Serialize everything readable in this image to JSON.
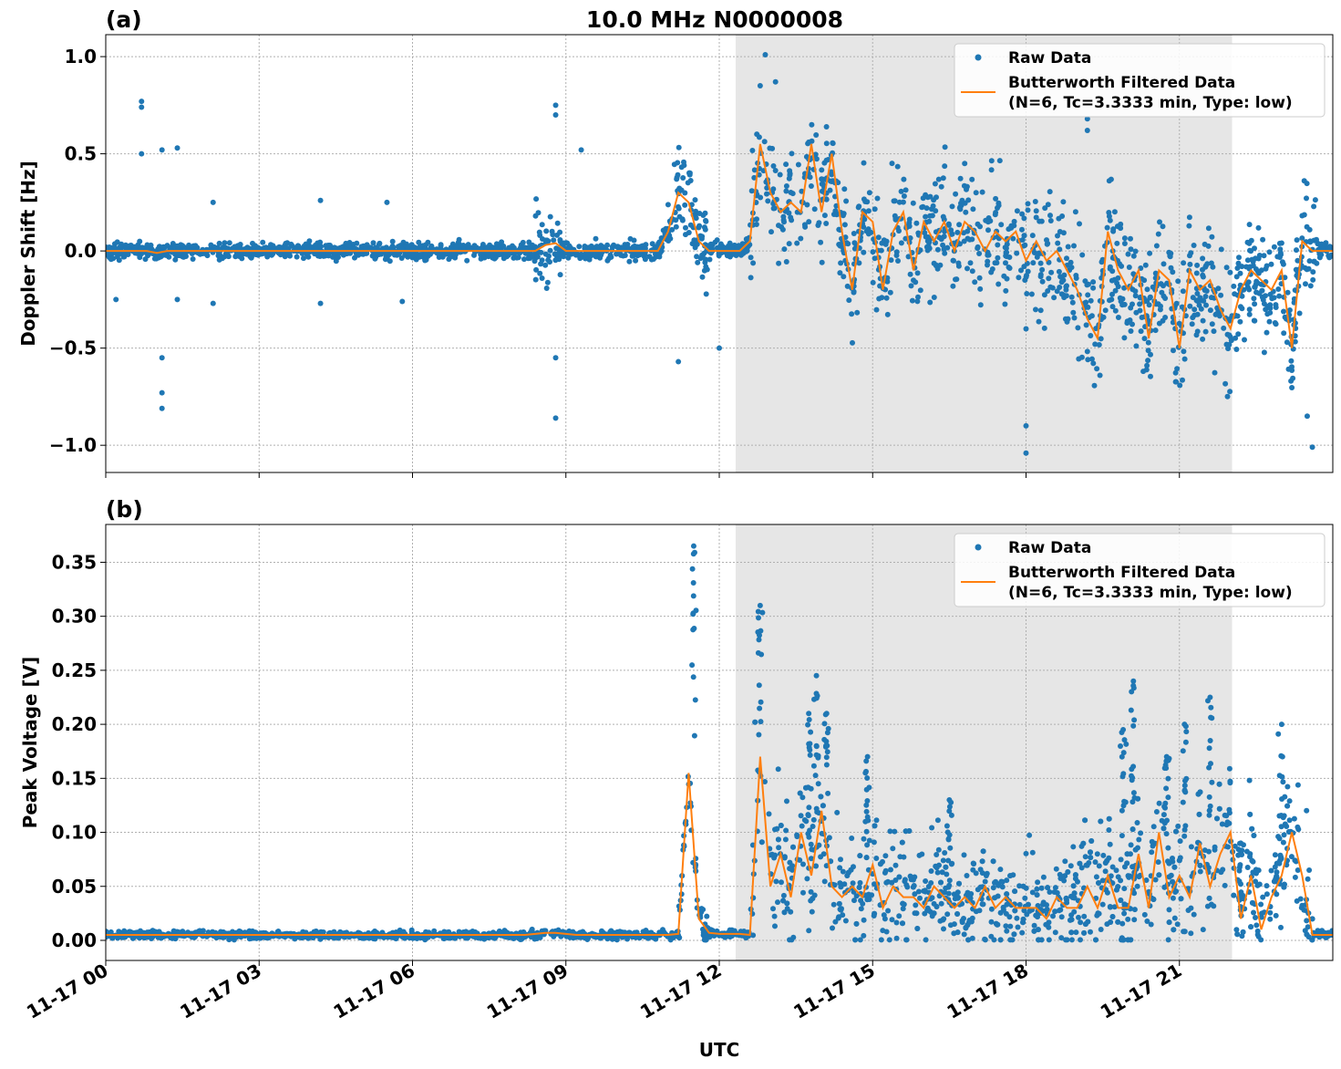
{
  "chart_data": [
    {
      "type": "scatter+line",
      "panel_label": "(a)",
      "title": "10.0 MHz N0000008",
      "xlabel": "UTC",
      "ylabel": "Doppler Shift [Hz]",
      "xlim_hours": [
        0,
        24
      ],
      "ylim": [
        -1.14,
        1.113
      ],
      "yticks": [
        1.0,
        0.5,
        0.0,
        -0.5,
        -1.0
      ],
      "ytick_labels": [
        "1.0",
        "0.5",
        "0.0",
        "−0.5",
        "−1.0"
      ],
      "grid": true,
      "shaded_region_hours": [
        12.32,
        22.03
      ],
      "legend": {
        "position": "top-right",
        "entries": [
          "Raw Data",
          "Butterworth Filtered Data",
          "(N=6, Tc=3.3333 min, Type: low)"
        ]
      },
      "filtered_step_hours": 0.2,
      "filtered": [
        0,
        0,
        0,
        0,
        0,
        -0.01,
        0,
        0,
        0,
        0,
        0,
        0,
        0,
        0,
        0,
        0,
        0,
        0,
        0,
        0,
        0,
        0,
        0,
        0,
        0,
        0,
        0,
        0,
        0,
        0,
        0,
        0,
        0,
        0,
        0,
        0,
        0,
        0,
        0,
        0,
        0,
        0,
        0,
        0.03,
        0.04,
        0,
        0,
        0,
        0,
        0,
        0,
        0,
        0,
        0,
        0,
        0.1,
        0.3,
        0.25,
        0.05,
        0,
        0,
        0,
        0,
        0.05,
        0.55,
        0.3,
        0.2,
        0.25,
        0.2,
        0.55,
        0.2,
        0.5,
        0.1,
        -0.2,
        0.2,
        0.15,
        -0.2,
        0.1,
        0.2,
        -0.1,
        0.15,
        0.05,
        0.15,
        0,
        0.15,
        0.1,
        0,
        0.1,
        0.05,
        0.1,
        -0.05,
        0.05,
        -0.05,
        0,
        -0.1,
        -0.2,
        -0.35,
        -0.45,
        0.1,
        -0.1,
        -0.2,
        -0.1,
        -0.45,
        -0.1,
        -0.15,
        -0.5,
        -0.1,
        -0.2,
        -0.15,
        -0.3,
        -0.4,
        -0.2,
        -0.1,
        -0.15,
        -0.2,
        -0.1,
        -0.5,
        0.05,
        0,
        0,
        0
      ],
      "raw_spread_hz": [
        [
          0,
          0.04
        ],
        [
          8.4,
          0.2
        ],
        [
          8.9,
          0.05
        ],
        [
          11.0,
          0.2
        ],
        [
          11.8,
          0.04
        ],
        [
          12.6,
          0.28
        ],
        [
          18.0,
          0.33
        ],
        [
          22.0,
          0.28
        ],
        [
          23.7,
          0.05
        ]
      ],
      "raw_outliers": [
        [
          0.2,
          -0.25
        ],
        [
          0.7,
          0.77
        ],
        [
          0.7,
          0.74
        ],
        [
          0.7,
          0.5
        ],
        [
          1.1,
          -0.81
        ],
        [
          1.1,
          -0.73
        ],
        [
          1.1,
          -0.55
        ],
        [
          1.1,
          0.52
        ],
        [
          1.4,
          0.53
        ],
        [
          1.4,
          -0.25
        ],
        [
          2.1,
          0.25
        ],
        [
          2.1,
          -0.27
        ],
        [
          4.2,
          0.26
        ],
        [
          4.2,
          -0.27
        ],
        [
          5.5,
          0.25
        ],
        [
          5.8,
          -0.26
        ],
        [
          8.8,
          0.75
        ],
        [
          8.8,
          0.7
        ],
        [
          8.8,
          -0.86
        ],
        [
          8.8,
          -0.55
        ],
        [
          9.3,
          0.52
        ],
        [
          11.2,
          -0.57
        ],
        [
          12.0,
          -0.5
        ],
        [
          12.9,
          1.01
        ],
        [
          12.8,
          0.85
        ],
        [
          13.1,
          0.87
        ],
        [
          16.8,
          0.45
        ],
        [
          18.0,
          -1.04
        ],
        [
          18.0,
          -0.9
        ],
        [
          19.2,
          0.62
        ],
        [
          19.2,
          0.68
        ],
        [
          23.6,
          -1.01
        ],
        [
          23.5,
          -0.85
        ]
      ]
    },
    {
      "type": "scatter+line",
      "panel_label": "(b)",
      "xlabel": "UTC",
      "ylabel": "Peak Voltage [V]",
      "xlim_hours": [
        0,
        24
      ],
      "ylim": [
        -0.0186,
        0.385
      ],
      "yticks": [
        0.35,
        0.3,
        0.25,
        0.2,
        0.15,
        0.1,
        0.05,
        0.0
      ],
      "ytick_labels": [
        "0.35",
        "0.30",
        "0.25",
        "0.20",
        "0.15",
        "0.10",
        "0.05",
        "0.00"
      ],
      "grid": true,
      "shaded_region_hours": [
        12.32,
        22.03
      ],
      "legend": {
        "position": "top-right",
        "entries": [
          "Raw Data",
          "Butterworth Filtered Data",
          "(N=6, Tc=3.3333 min, Type: low)"
        ]
      },
      "filtered_step_hours": 0.2,
      "filtered": [
        0.005,
        0.005,
        0.005,
        0.005,
        0.005,
        0.005,
        0.005,
        0.005,
        0.005,
        0.005,
        0.005,
        0.005,
        0.005,
        0.005,
        0.005,
        0.005,
        0.005,
        0.005,
        0.005,
        0.005,
        0.005,
        0.005,
        0.005,
        0.005,
        0.005,
        0.005,
        0.005,
        0.005,
        0.005,
        0.005,
        0.005,
        0.005,
        0.005,
        0.005,
        0.005,
        0.005,
        0.005,
        0.005,
        0.005,
        0.005,
        0.005,
        0.005,
        0.006,
        0.007,
        0.007,
        0.006,
        0.005,
        0.005,
        0.005,
        0.005,
        0.005,
        0.005,
        0.005,
        0.005,
        0.005,
        0.005,
        0.006,
        0.155,
        0.02,
        0.007,
        0.006,
        0.006,
        0.006,
        0.005,
        0.17,
        0.05,
        0.08,
        0.04,
        0.1,
        0.06,
        0.12,
        0.05,
        0.04,
        0.05,
        0.04,
        0.07,
        0.03,
        0.05,
        0.04,
        0.04,
        0.03,
        0.05,
        0.04,
        0.03,
        0.04,
        0.03,
        0.05,
        0.03,
        0.04,
        0.03,
        0.03,
        0.03,
        0.02,
        0.04,
        0.03,
        0.03,
        0.05,
        0.03,
        0.06,
        0.03,
        0.03,
        0.08,
        0.03,
        0.1,
        0.04,
        0.06,
        0.04,
        0.09,
        0.05,
        0.08,
        0.1,
        0.02,
        0.06,
        0.01,
        0.04,
        0.06,
        0.1,
        0.06,
        0.005,
        0.005,
        0.005
      ],
      "raw_spread_v": [
        [
          0,
          0.002
        ],
        [
          11.2,
          0.01
        ],
        [
          11.8,
          0.002
        ],
        [
          12.6,
          0.03
        ],
        [
          16.0,
          0.022
        ],
        [
          19.0,
          0.03
        ],
        [
          23.6,
          0.002
        ]
      ],
      "raw_spikes": [
        [
          11.5,
          0.365
        ],
        [
          12.8,
          0.31
        ],
        [
          13.75,
          0.21
        ],
        [
          13.9,
          0.245
        ],
        [
          14.1,
          0.21
        ],
        [
          14.9,
          0.17
        ],
        [
          16.5,
          0.13
        ],
        [
          19.9,
          0.195
        ],
        [
          20.1,
          0.24
        ],
        [
          20.75,
          0.17
        ],
        [
          21.1,
          0.2
        ],
        [
          21.6,
          0.225
        ],
        [
          22.2,
          0.09
        ],
        [
          23.0,
          0.2
        ]
      ]
    }
  ],
  "xtick_labels": [
    "11-17 00",
    "11-17 03",
    "11-17 06",
    "11-17 09",
    "11-17 12",
    "11-17 15",
    "11-17 18",
    "11-17 21"
  ],
  "xtick_hours": [
    0,
    3,
    6,
    9,
    12,
    15,
    18,
    21
  ],
  "colors": {
    "raw": "#1f77b4",
    "filtered": "#ff7f0e",
    "shade": "#e6e6e6",
    "grid": "#b0b0b0"
  }
}
